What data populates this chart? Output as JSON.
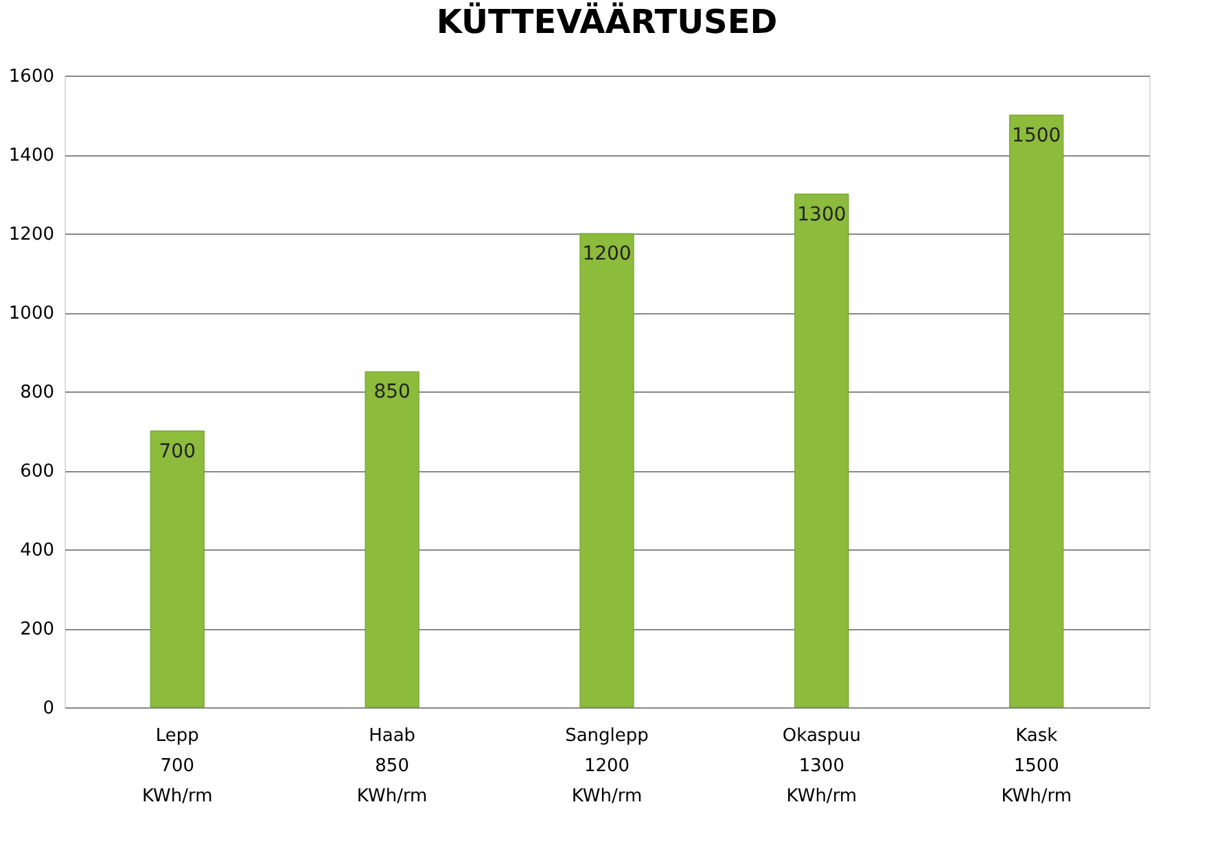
{
  "chart_data": {
    "type": "bar",
    "title": "KÜTTEVÄÄRTUSED",
    "categories": [
      "Lepp\n700\nKWh/rm",
      "Haab\n850\nKWh/rm",
      "Sanglepp\n1200\nKWh/rm",
      "Okaspuu\n1300\nKWh/rm",
      "Kask\n1500\nKWh/rm"
    ],
    "values": [
      700,
      850,
      1200,
      1300,
      1500
    ],
    "color": "#8dbb3c",
    "ylim": [
      0,
      1600
    ],
    "yticks": [
      0,
      200,
      400,
      600,
      800,
      1000,
      1200,
      1400,
      1600
    ],
    "grid": "y",
    "data_labels": true
  }
}
